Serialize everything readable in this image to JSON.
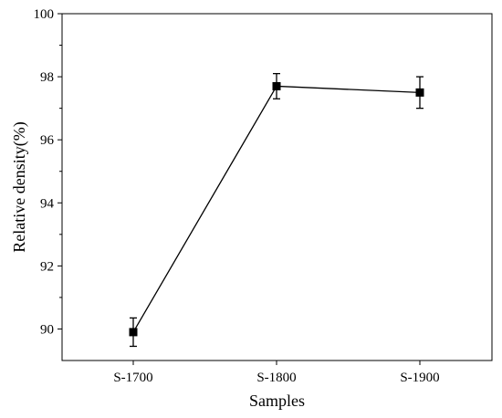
{
  "chart_data": {
    "type": "line",
    "title": "",
    "xlabel": "Samples",
    "ylabel": "Relative density(%)",
    "categories": [
      "S-1700",
      "S-1800",
      "S-1900"
    ],
    "series": [
      {
        "values": [
          89.9,
          97.7,
          97.5
        ],
        "error": [
          0.45,
          0.4,
          0.5
        ],
        "marker": "square",
        "color": "#000000"
      }
    ],
    "ylim": [
      89,
      100
    ],
    "yticks": [
      90,
      92,
      94,
      96,
      98,
      100
    ],
    "grid": false,
    "legend": "none"
  }
}
